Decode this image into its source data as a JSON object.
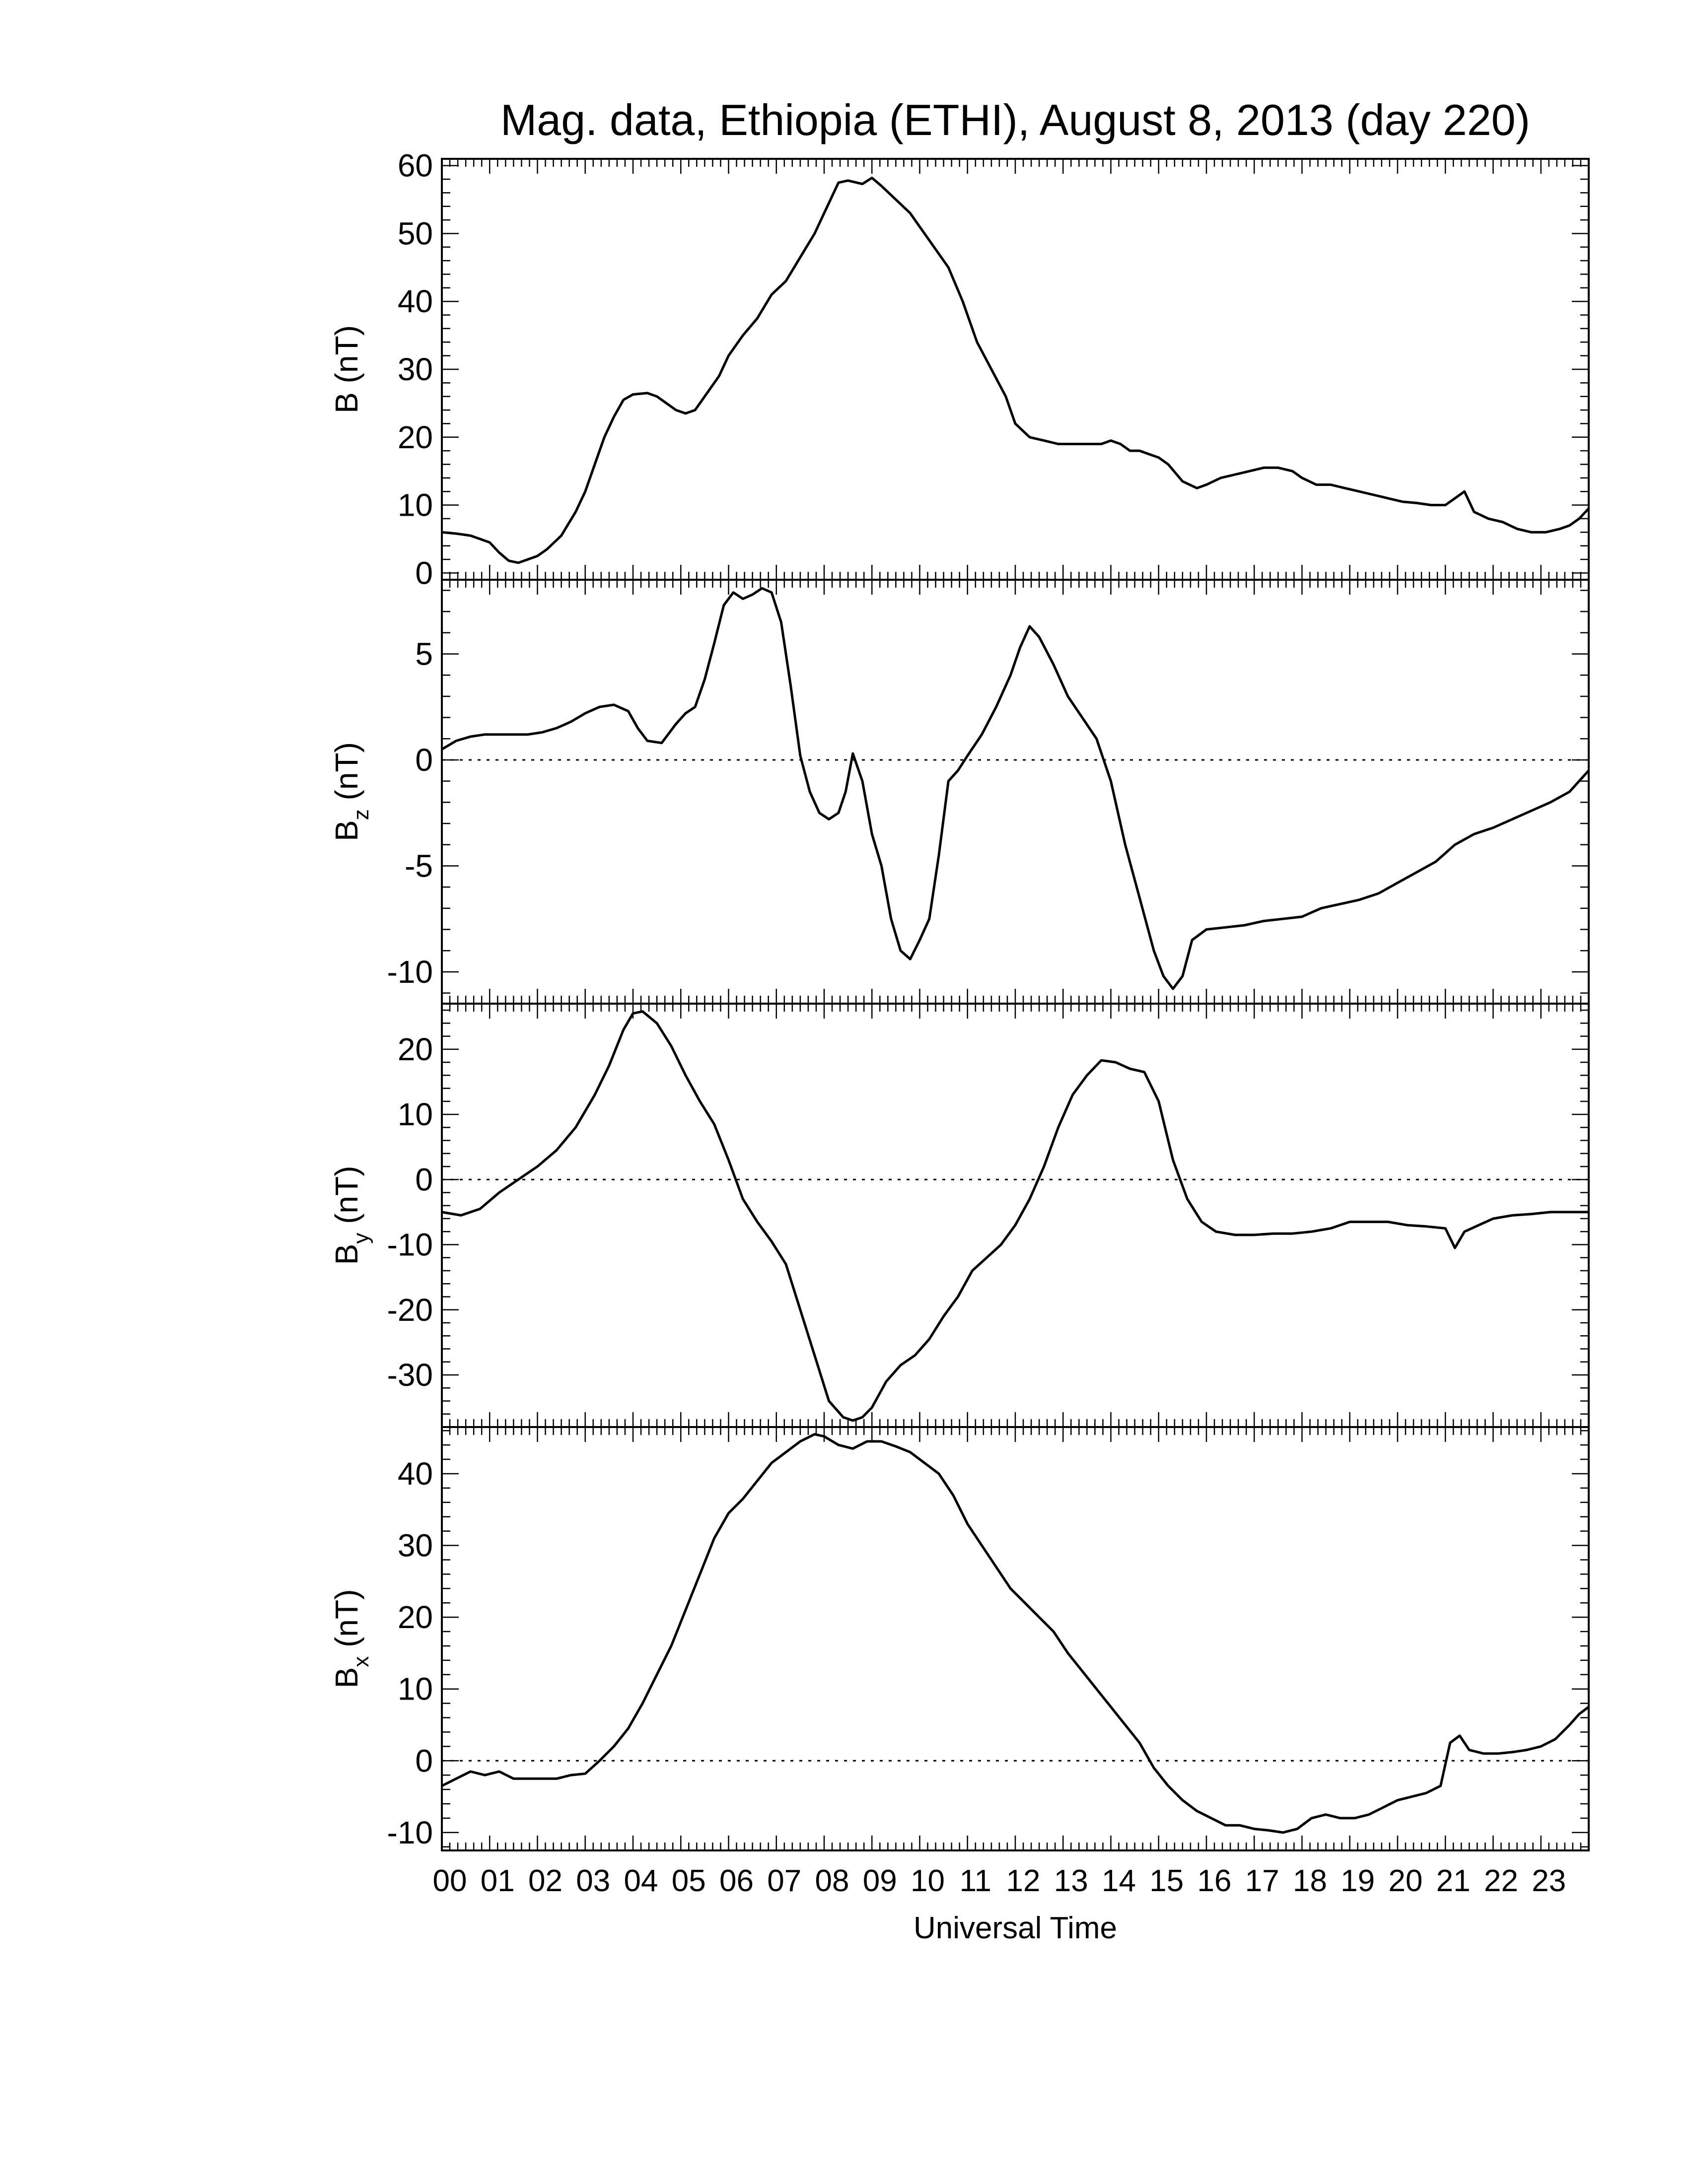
{
  "chart_data": {
    "type": "line",
    "title": "Mag. data, Ethiopia (ETHI), August 8, 2013 (day 220)",
    "xlabel": "Universal Time",
    "xlim": [
      0,
      24
    ],
    "x_tick_labels": [
      "00",
      "01",
      "02",
      "03",
      "04",
      "05",
      "06",
      "07",
      "08",
      "09",
      "10",
      "11",
      "12",
      "13",
      "14",
      "15",
      "16",
      "17",
      "18",
      "19",
      "20",
      "21",
      "22",
      "23"
    ],
    "grid": false,
    "line_color": "#000000",
    "zero_line": "dotted",
    "panels": [
      {
        "name": "B",
        "ylabel_main": "B",
        "ylabel_sub": "",
        "ylabel_unit": "(nT)",
        "ylim": [
          -1,
          61
        ],
        "yticks": [
          0,
          10,
          20,
          30,
          40,
          50,
          60
        ],
        "ytick_labels": [
          "0",
          "10",
          "20",
          "30",
          "40",
          "50",
          "60"
        ],
        "zero_line": false,
        "x": [
          0,
          0.3,
          0.6,
          0.8,
          1.0,
          1.2,
          1.4,
          1.6,
          1.8,
          2.0,
          2.2,
          2.5,
          2.8,
          3.0,
          3.2,
          3.4,
          3.6,
          3.8,
          4.0,
          4.3,
          4.5,
          4.7,
          4.9,
          5.1,
          5.3,
          5.5,
          5.8,
          6.0,
          6.3,
          6.6,
          6.9,
          7.2,
          7.5,
          7.8,
          8.0,
          8.3,
          8.5,
          8.8,
          9.0,
          9.2,
          9.5,
          9.8,
          10.0,
          10.3,
          10.6,
          10.9,
          11.2,
          11.5,
          11.8,
          12.0,
          12.3,
          12.6,
          12.9,
          13.2,
          13.5,
          13.8,
          14.0,
          14.2,
          14.4,
          14.6,
          14.8,
          15.0,
          15.2,
          15.5,
          15.8,
          16.0,
          16.3,
          16.6,
          16.9,
          17.2,
          17.5,
          17.8,
          18.0,
          18.3,
          18.6,
          18.9,
          19.2,
          19.5,
          19.8,
          20.1,
          20.4,
          20.7,
          21.0,
          21.2,
          21.4,
          21.6,
          21.9,
          22.2,
          22.5,
          22.8,
          23.1,
          23.4,
          23.6,
          23.8,
          24.0
        ],
        "y": [
          6,
          5.8,
          5.5,
          5.0,
          4.5,
          3.0,
          1.8,
          1.5,
          2.0,
          2.5,
          3.5,
          5.5,
          9,
          12,
          16,
          20,
          23,
          25.5,
          26.3,
          26.5,
          26,
          25,
          24,
          23.5,
          24,
          26,
          29,
          32,
          35,
          37.5,
          41,
          43,
          46.5,
          50,
          53,
          57.5,
          57.8,
          57.3,
          58.2,
          57,
          55,
          53,
          51,
          48,
          45,
          40,
          34,
          30,
          26,
          22,
          20,
          19.5,
          19,
          19,
          19,
          19,
          19.5,
          19,
          18,
          18,
          17.5,
          17,
          16,
          13.5,
          12.5,
          13,
          14,
          14.5,
          15,
          15.5,
          15.5,
          15,
          14,
          13,
          13,
          12.5,
          12,
          11.5,
          11,
          10.5,
          10.3,
          10,
          10,
          11,
          12,
          9,
          8,
          7.5,
          6.5,
          6,
          6,
          6.5,
          7,
          8,
          9.5
        ]
      },
      {
        "name": "Bz",
        "ylabel_main": "B",
        "ylabel_sub": "z",
        "ylabel_unit": "(nT)",
        "ylim": [
          -11.5,
          8.5
        ],
        "yticks": [
          -10,
          -5,
          0,
          5
        ],
        "ytick_labels": [
          "-10",
          "-5",
          "0",
          "5"
        ],
        "zero_line": true,
        "x": [
          0,
          0.3,
          0.6,
          0.9,
          1.2,
          1.5,
          1.8,
          2.1,
          2.4,
          2.7,
          3.0,
          3.3,
          3.6,
          3.9,
          4.1,
          4.3,
          4.6,
          4.9,
          5.1,
          5.3,
          5.5,
          5.7,
          5.9,
          6.1,
          6.3,
          6.5,
          6.7,
          6.9,
          7.1,
          7.3,
          7.5,
          7.7,
          7.9,
          8.1,
          8.3,
          8.45,
          8.6,
          8.8,
          9.0,
          9.2,
          9.4,
          9.6,
          9.8,
          10.0,
          10.2,
          10.4,
          10.6,
          10.8,
          11.0,
          11.3,
          11.6,
          11.9,
          12.1,
          12.3,
          12.5,
          12.8,
          13.1,
          13.4,
          13.7,
          14.0,
          14.3,
          14.6,
          14.9,
          15.1,
          15.3,
          15.5,
          15.7,
          16.0,
          16.4,
          16.8,
          17.2,
          17.6,
          18.0,
          18.4,
          18.8,
          19.2,
          19.6,
          20.0,
          20.4,
          20.8,
          21.2,
          21.6,
          22.0,
          22.4,
          22.8,
          23.2,
          23.6,
          24.0
        ],
        "y": [
          0.5,
          0.9,
          1.1,
          1.2,
          1.2,
          1.2,
          1.2,
          1.3,
          1.5,
          1.8,
          2.2,
          2.5,
          2.6,
          2.3,
          1.5,
          0.9,
          0.8,
          1.7,
          2.2,
          2.5,
          3.8,
          5.5,
          7.3,
          7.9,
          7.6,
          7.8,
          8.1,
          7.9,
          6.5,
          3.5,
          0.2,
          -1.5,
          -2.5,
          -2.8,
          -2.5,
          -1.5,
          0.3,
          -1.0,
          -3.5,
          -5.0,
          -7.5,
          -9.0,
          -9.4,
          -8.5,
          -7.5,
          -4.5,
          -1.0,
          -0.5,
          0.2,
          1.2,
          2.5,
          4.0,
          5.3,
          6.3,
          5.8,
          4.5,
          3.0,
          2.0,
          1.0,
          -1.0,
          -4.0,
          -6.5,
          -9.0,
          -10.2,
          -10.8,
          -10.2,
          -8.5,
          -8.0,
          -7.9,
          -7.8,
          -7.6,
          -7.5,
          -7.4,
          -7.0,
          -6.8,
          -6.6,
          -6.3,
          -5.8,
          -5.3,
          -4.8,
          -4.0,
          -3.5,
          -3.2,
          -2.8,
          -2.4,
          -2.0,
          -1.5,
          -0.5
        ]
      },
      {
        "name": "By",
        "ylabel_main": "B",
        "ylabel_sub": "y",
        "ylabel_unit": "(nT)",
        "ylim": [
          -38,
          27
        ],
        "yticks": [
          -30,
          -20,
          -10,
          0,
          10,
          20
        ],
        "ytick_labels": [
          "-30",
          "-20",
          "-10",
          "0",
          "10",
          "20"
        ],
        "zero_line": true,
        "x": [
          0,
          0.4,
          0.8,
          1.2,
          1.6,
          2.0,
          2.4,
          2.8,
          3.2,
          3.5,
          3.8,
          4.0,
          4.2,
          4.5,
          4.8,
          5.1,
          5.4,
          5.7,
          6.0,
          6.3,
          6.6,
          6.9,
          7.2,
          7.5,
          7.8,
          8.1,
          8.4,
          8.6,
          8.8,
          9.0,
          9.3,
          9.6,
          9.9,
          10.2,
          10.5,
          10.8,
          11.1,
          11.4,
          11.7,
          12.0,
          12.3,
          12.6,
          12.9,
          13.2,
          13.5,
          13.8,
          14.1,
          14.4,
          14.7,
          15.0,
          15.3,
          15.6,
          15.9,
          16.2,
          16.6,
          17.0,
          17.4,
          17.8,
          18.2,
          18.6,
          19.0,
          19.4,
          19.8,
          20.2,
          20.6,
          21.0,
          21.2,
          21.4,
          21.7,
          22.0,
          22.4,
          22.8,
          23.2,
          23.6,
          24.0
        ],
        "y": [
          -5,
          -5.5,
          -4.5,
          -2,
          0,
          2,
          4.5,
          8,
          13,
          17.5,
          23,
          25.5,
          25.8,
          24,
          20.5,
          16,
          12,
          8.5,
          3,
          -3,
          -6.5,
          -9.5,
          -13,
          -20,
          -27,
          -34,
          -36.5,
          -37,
          -36.5,
          -35,
          -31,
          -28.5,
          -27,
          -24.5,
          -21,
          -18,
          -14,
          -12,
          -10,
          -7,
          -3,
          2,
          8,
          13,
          16,
          18.3,
          18,
          17,
          16.5,
          12,
          3,
          -3,
          -6.5,
          -8,
          -8.5,
          -8.5,
          -8.3,
          -8.3,
          -8,
          -7.5,
          -6.5,
          -6.5,
          -6.5,
          -7,
          -7.2,
          -7.5,
          -10.5,
          -8,
          -7,
          -6,
          -5.5,
          -5.3,
          -5,
          -5,
          -5
        ]
      },
      {
        "name": "Bx",
        "ylabel_main": "B",
        "ylabel_sub": "x",
        "ylabel_unit": "(nT)",
        "ylim": [
          -12.5,
          46.5
        ],
        "yticks": [
          -10,
          0,
          10,
          20,
          30,
          40
        ],
        "ytick_labels": [
          "-10",
          "0",
          "10",
          "20",
          "30",
          "40"
        ],
        "zero_line": true,
        "x": [
          0,
          0.3,
          0.6,
          0.9,
          1.2,
          1.5,
          1.8,
          2.1,
          2.4,
          2.7,
          3.0,
          3.3,
          3.6,
          3.9,
          4.2,
          4.5,
          4.8,
          5.1,
          5.4,
          5.7,
          6.0,
          6.3,
          6.6,
          6.9,
          7.2,
          7.5,
          7.8,
          8.0,
          8.3,
          8.6,
          8.9,
          9.2,
          9.5,
          9.8,
          10.1,
          10.4,
          10.7,
          11.0,
          11.3,
          11.6,
          11.9,
          12.2,
          12.5,
          12.8,
          13.1,
          13.4,
          13.7,
          14.0,
          14.3,
          14.6,
          14.9,
          15.2,
          15.5,
          15.8,
          16.1,
          16.4,
          16.7,
          17.0,
          17.3,
          17.6,
          17.9,
          18.2,
          18.5,
          18.8,
          19.1,
          19.4,
          19.7,
          20.0,
          20.3,
          20.6,
          20.9,
          21.1,
          21.3,
          21.5,
          21.8,
          22.1,
          22.4,
          22.7,
          23.0,
          23.3,
          23.6,
          23.8,
          24.0
        ],
        "y": [
          -3.5,
          -2.5,
          -1.5,
          -2,
          -1.5,
          -2.5,
          -2.5,
          -2.5,
          -2.5,
          -2,
          -1.8,
          0,
          2,
          4.5,
          8,
          12,
          16,
          21,
          26,
          31,
          34.5,
          36.5,
          39,
          41.5,
          43,
          44.5,
          45.5,
          45.2,
          44,
          43.5,
          44.5,
          44.5,
          43.8,
          43,
          41.5,
          40,
          37,
          33,
          30,
          27,
          24,
          22,
          20,
          18,
          15,
          12.5,
          10,
          7.5,
          5,
          2.5,
          -1,
          -3.5,
          -5.5,
          -7,
          -8,
          -9,
          -9,
          -9.5,
          -9.7,
          -10,
          -9.5,
          -8,
          -7.5,
          -8,
          -8,
          -7.5,
          -6.5,
          -5.5,
          -5,
          -4.5,
          -3.5,
          2.5,
          3.5,
          1.5,
          1,
          1,
          1.2,
          1.5,
          2,
          3,
          5,
          6.5,
          7.5
        ]
      }
    ]
  }
}
